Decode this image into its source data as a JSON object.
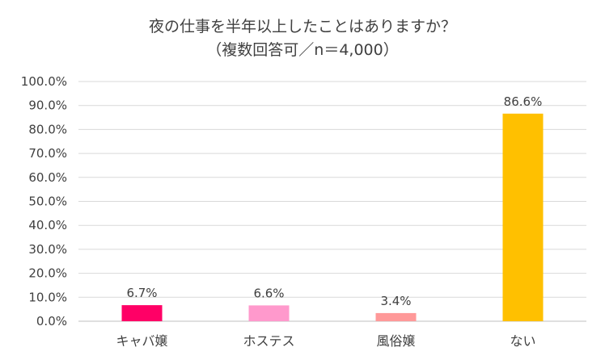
{
  "chart_data": {
    "type": "bar",
    "title_lines": [
      "夜の仕事を半年以上したことはありますか？",
      "（複数回答可／n＝4,000）"
    ],
    "categories": [
      "キャバ嬢",
      "ホステス",
      "風俗嬢",
      "ない"
    ],
    "values": [
      6.7,
      6.6,
      3.4,
      86.6
    ],
    "data_labels": [
      "6.7%",
      "6.6%",
      "3.4%",
      "86.6%"
    ],
    "bar_colors": [
      "#FF0066",
      "#FF99CC",
      "#FF9999",
      "#FFC000"
    ],
    "ylim": [
      0,
      100
    ],
    "y_ticks": [
      0,
      10,
      20,
      30,
      40,
      50,
      60,
      70,
      80,
      90,
      100
    ],
    "y_tick_labels": [
      "0.0%",
      "10.0%",
      "20.0%",
      "30.0%",
      "40.0%",
      "50.0%",
      "60.0%",
      "70.0%",
      "80.0%",
      "90.0%",
      "100.0%"
    ],
    "grid": true,
    "legend": "none",
    "xlabel": "",
    "ylabel": ""
  }
}
